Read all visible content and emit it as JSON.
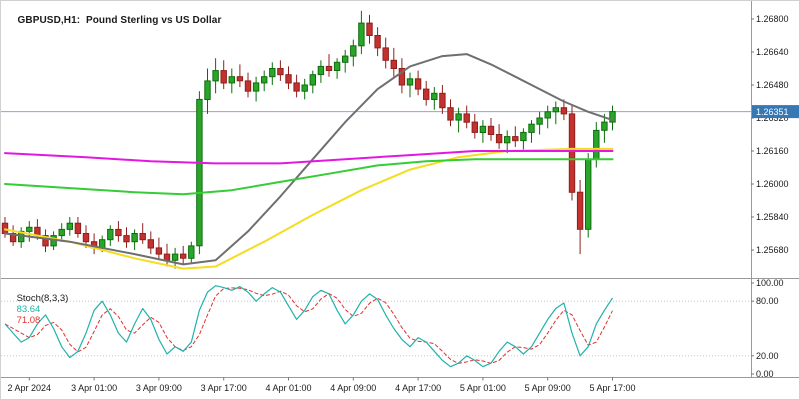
{
  "header": {
    "symbol_label": "GBPUSD,H1:  Pound Sterling vs US Dollar"
  },
  "main_chart": {
    "price_axis_labels": [
      "1.26800",
      "1.26640",
      "1.26480",
      "1.26320",
      "1.26160",
      "1.26000",
      "1.25840",
      "1.25680"
    ],
    "current_price_badge": "1.26351",
    "colors": {
      "up_fill": "#2aa52a",
      "up_border": "#0b6e0b",
      "down_fill": "#c4322f",
      "down_border": "#8f1f1d",
      "price_line": "#85a9cc",
      "badge_bg": "#3678b4",
      "badge_text": "#ffffff",
      "axis_text": "#1a1a1a",
      "separator": "#9a9a9a"
    }
  },
  "indicator_panel": {
    "name_label": "Stoch(8,3,3)",
    "main_value": "83.64",
    "signal_value": "71.08",
    "axis_labels": [
      "100.00",
      "80.00",
      "20.00",
      "0.00"
    ],
    "axis_values": [
      100,
      80,
      20,
      0
    ],
    "level_values": [
      80,
      20
    ],
    "colors": {
      "main": "#20b2aa",
      "signal": "#e03030",
      "levels": "#c8c8c8"
    }
  },
  "time_axis": {
    "labels": [
      {
        "text": "2 Apr 2024",
        "candle": 3
      },
      {
        "text": "3 Apr 01:00",
        "candle": 11
      },
      {
        "text": "3 Apr 09:00",
        "candle": 19
      },
      {
        "text": "3 Apr 17:00",
        "candle": 27
      },
      {
        "text": "4 Apr 01:00",
        "candle": 35
      },
      {
        "text": "4 Apr 09:00",
        "candle": 43
      },
      {
        "text": "4 Apr 17:00",
        "candle": 51
      },
      {
        "text": "5 Apr 01:00",
        "candle": 59
      },
      {
        "text": "5 Apr 09:00",
        "candle": 67
      },
      {
        "text": "5 Apr 17:00",
        "candle": 75
      }
    ]
  },
  "chart_data": {
    "type": "candlestick",
    "symbol": "GBPUSD",
    "timeframe": "H1",
    "title": "GBPUSD,H1: Pound Sterling vs US Dollar",
    "y_axis": {
      "min": 1.2568,
      "max": 1.268,
      "tick_step": 0.0016
    },
    "current_price": 1.26351,
    "candles_ohlc": [
      [
        1.2581,
        1.2584,
        1.2574,
        1.2576
      ],
      [
        1.2576,
        1.258,
        1.257,
        1.2572
      ],
      [
        1.2572,
        1.2579,
        1.2569,
        1.2577
      ],
      [
        1.2577,
        1.2582,
        1.2572,
        1.2579
      ],
      [
        1.2579,
        1.2583,
        1.2573,
        1.2575
      ],
      [
        1.2575,
        1.2578,
        1.2567,
        1.257
      ],
      [
        1.257,
        1.2577,
        1.2568,
        1.2575
      ],
      [
        1.2575,
        1.2581,
        1.2572,
        1.2578
      ],
      [
        1.2578,
        1.2584,
        1.2575,
        1.2581
      ],
      [
        1.2581,
        1.2584,
        1.2574,
        1.2576
      ],
      [
        1.2576,
        1.258,
        1.2569,
        1.2572
      ],
      [
        1.2572,
        1.2576,
        1.2566,
        1.2569
      ],
      [
        1.2569,
        1.2575,
        1.2567,
        1.2573
      ],
      [
        1.2573,
        1.258,
        1.257,
        1.2578
      ],
      [
        1.2578,
        1.2582,
        1.2572,
        1.2575
      ],
      [
        1.2575,
        1.2579,
        1.2569,
        1.2572
      ],
      [
        1.2572,
        1.2578,
        1.2568,
        1.2576
      ],
      [
        1.2576,
        1.2581,
        1.2571,
        1.2573
      ],
      [
        1.2573,
        1.2577,
        1.2566,
        1.2569
      ],
      [
        1.2569,
        1.2574,
        1.2563,
        1.2566
      ],
      [
        1.2566,
        1.2571,
        1.256,
        1.2563
      ],
      [
        1.2563,
        1.2569,
        1.2559,
        1.2566
      ],
      [
        1.2566,
        1.257,
        1.2561,
        1.2564
      ],
      [
        1.2564,
        1.2572,
        1.2562,
        1.257
      ],
      [
        1.257,
        1.2645,
        1.2566,
        1.2641
      ],
      [
        1.2641,
        1.2656,
        1.2634,
        1.265
      ],
      [
        1.265,
        1.2661,
        1.2644,
        1.2655
      ],
      [
        1.2655,
        1.266,
        1.2646,
        1.2649
      ],
      [
        1.2649,
        1.2656,
        1.2644,
        1.2652
      ],
      [
        1.2652,
        1.2658,
        1.2647,
        1.265
      ],
      [
        1.265,
        1.2654,
        1.2642,
        1.2645
      ],
      [
        1.2645,
        1.2652,
        1.264,
        1.2649
      ],
      [
        1.2649,
        1.2655,
        1.2645,
        1.2652
      ],
      [
        1.2652,
        1.2659,
        1.2648,
        1.2656
      ],
      [
        1.2656,
        1.266,
        1.265,
        1.2653
      ],
      [
        1.2653,
        1.2657,
        1.2646,
        1.2649
      ],
      [
        1.2649,
        1.2653,
        1.2642,
        1.2645
      ],
      [
        1.2645,
        1.2651,
        1.2641,
        1.2648
      ],
      [
        1.2648,
        1.2655,
        1.2644,
        1.2653
      ],
      [
        1.2653,
        1.266,
        1.2649,
        1.2657
      ],
      [
        1.2657,
        1.2663,
        1.2652,
        1.2655
      ],
      [
        1.2655,
        1.2661,
        1.2651,
        1.2659
      ],
      [
        1.2659,
        1.2665,
        1.2654,
        1.2662
      ],
      [
        1.2662,
        1.267,
        1.2657,
        1.2667
      ],
      [
        1.2667,
        1.2684,
        1.2663,
        1.2678
      ],
      [
        1.2678,
        1.2682,
        1.2668,
        1.2672
      ],
      [
        1.2672,
        1.2676,
        1.2662,
        1.2666
      ],
      [
        1.2666,
        1.2671,
        1.2656,
        1.266
      ],
      [
        1.266,
        1.2666,
        1.2652,
        1.2656
      ],
      [
        1.2656,
        1.2661,
        1.2644,
        1.2648
      ],
      [
        1.2648,
        1.2654,
        1.2642,
        1.2651
      ],
      [
        1.2651,
        1.2655,
        1.2643,
        1.2646
      ],
      [
        1.2646,
        1.265,
        1.2638,
        1.2641
      ],
      [
        1.2641,
        1.2647,
        1.2636,
        1.2644
      ],
      [
        1.2644,
        1.2648,
        1.2634,
        1.2637
      ],
      [
        1.2637,
        1.2641,
        1.2628,
        1.2631
      ],
      [
        1.2631,
        1.2637,
        1.2625,
        1.2634
      ],
      [
        1.2634,
        1.2638,
        1.2627,
        1.263
      ],
      [
        1.263,
        1.2634,
        1.2622,
        1.2625
      ],
      [
        1.2625,
        1.2631,
        1.262,
        1.2628
      ],
      [
        1.2628,
        1.2632,
        1.2621,
        1.2624
      ],
      [
        1.2624,
        1.2629,
        1.2617,
        1.262
      ],
      [
        1.262,
        1.2626,
        1.2615,
        1.2623
      ],
      [
        1.2623,
        1.2628,
        1.2618,
        1.2621
      ],
      [
        1.2621,
        1.2627,
        1.2616,
        1.2625
      ],
      [
        1.2625,
        1.2631,
        1.262,
        1.2629
      ],
      [
        1.2629,
        1.2635,
        1.2624,
        1.2632
      ],
      [
        1.2632,
        1.2638,
        1.2627,
        1.2635
      ],
      [
        1.2635,
        1.264,
        1.2629,
        1.2637
      ],
      [
        1.2637,
        1.2641,
        1.2631,
        1.2634
      ],
      [
        1.2634,
        1.2638,
        1.2592,
        1.2596
      ],
      [
        1.2596,
        1.2602,
        1.2566,
        1.2578
      ],
      [
        1.2578,
        1.2615,
        1.2574,
        1.2612
      ],
      [
        1.2612,
        1.263,
        1.2608,
        1.2626
      ],
      [
        1.2626,
        1.2634,
        1.262,
        1.263
      ],
      [
        1.263,
        1.2638,
        1.2626,
        1.26351
      ]
    ],
    "overlays": [
      {
        "name": "ma-yellow",
        "color": "#f2dd1e",
        "width": 2,
        "points": [
          [
            0,
            1.2578
          ],
          [
            8,
            1.2572
          ],
          [
            16,
            1.2564
          ],
          [
            22,
            1.2559
          ],
          [
            26,
            1.256
          ],
          [
            32,
            1.2572
          ],
          [
            38,
            1.2585
          ],
          [
            44,
            1.2597
          ],
          [
            50,
            1.2607
          ],
          [
            56,
            1.2613
          ],
          [
            62,
            1.2616
          ],
          [
            70,
            1.2617
          ],
          [
            75,
            1.2617
          ]
        ]
      },
      {
        "name": "ma-gray",
        "color": "#6f6f6f",
        "width": 2,
        "points": [
          [
            0,
            1.2576
          ],
          [
            8,
            1.2572
          ],
          [
            16,
            1.2566
          ],
          [
            22,
            1.2561
          ],
          [
            26,
            1.2563
          ],
          [
            30,
            1.2577
          ],
          [
            34,
            1.2594
          ],
          [
            38,
            1.2612
          ],
          [
            42,
            1.263
          ],
          [
            46,
            1.2646
          ],
          [
            50,
            1.2657
          ],
          [
            54,
            1.2662
          ],
          [
            57,
            1.2663
          ],
          [
            60,
            1.2658
          ],
          [
            63,
            1.2652
          ],
          [
            66,
            1.2646
          ],
          [
            69,
            1.264
          ],
          [
            72,
            1.2635
          ],
          [
            75,
            1.2631
          ]
        ]
      },
      {
        "name": "ma-green",
        "color": "#35cc35",
        "width": 2,
        "points": [
          [
            0,
            1.26
          ],
          [
            8,
            1.2598
          ],
          [
            16,
            1.2596
          ],
          [
            22,
            1.2595
          ],
          [
            28,
            1.2597
          ],
          [
            34,
            1.2601
          ],
          [
            40,
            1.2605
          ],
          [
            46,
            1.2609
          ],
          [
            52,
            1.2611
          ],
          [
            58,
            1.2612
          ],
          [
            75,
            1.2612
          ]
        ]
      },
      {
        "name": "ma-magenta",
        "color": "#e316e3",
        "width": 2,
        "points": [
          [
            0,
            1.2615
          ],
          [
            10,
            1.2613
          ],
          [
            18,
            1.2611
          ],
          [
            26,
            1.261
          ],
          [
            34,
            1.261
          ],
          [
            42,
            1.2612
          ],
          [
            50,
            1.2614
          ],
          [
            58,
            1.2616
          ],
          [
            75,
            1.2616
          ]
        ]
      }
    ],
    "stochastic": {
      "type": "line",
      "range": [
        0,
        100
      ],
      "signal_period": 3,
      "main": [
        55,
        45,
        35,
        40,
        55,
        65,
        50,
        30,
        18,
        25,
        45,
        70,
        80,
        65,
        45,
        35,
        55,
        72,
        60,
        38,
        22,
        30,
        25,
        35,
        70,
        90,
        97,
        95,
        92,
        96,
        90,
        80,
        88,
        95,
        90,
        75,
        60,
        70,
        85,
        92,
        88,
        70,
        55,
        65,
        80,
        88,
        82,
        65,
        50,
        38,
        30,
        40,
        35,
        25,
        15,
        8,
        12,
        20,
        15,
        8,
        12,
        25,
        35,
        30,
        22,
        30,
        45,
        60,
        72,
        78,
        45,
        20,
        30,
        55,
        70,
        83.64
      ]
    }
  }
}
